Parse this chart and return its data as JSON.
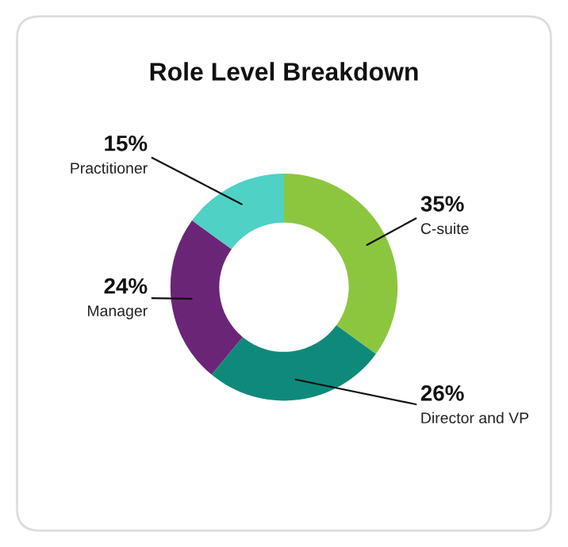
{
  "chart_data": {
    "type": "donut",
    "title": "Role Level Breakdown",
    "categories": [
      "C-suite",
      "Director and VP",
      "Manager",
      "Practitioner"
    ],
    "values": [
      35,
      26,
      24,
      15
    ],
    "value_labels": [
      "35%",
      "26%",
      "24%",
      "15%"
    ],
    "colors": [
      "#8cc63f",
      "#0f8a7a",
      "#6b2577",
      "#4fd1c5"
    ],
    "legend": false
  }
}
